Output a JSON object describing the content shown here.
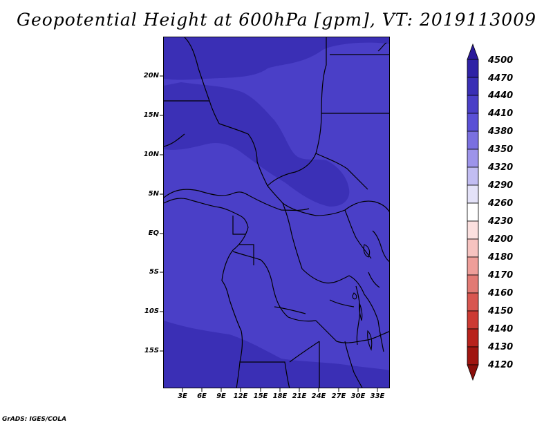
{
  "title": "Geopotential Height at 600hPa [gpm], VT: 2019113009",
  "footer": "GrADS: IGES/COLA",
  "lat_axis": {
    "labels": [
      "20N",
      "15N",
      "10N",
      "5N",
      "EQ",
      "5S",
      "10S",
      "15S"
    ],
    "values": [
      20,
      15,
      10,
      5,
      0,
      -5,
      -10,
      -15
    ],
    "range": [
      -20,
      25
    ]
  },
  "lon_axis": {
    "labels": [
      "3E",
      "6E",
      "9E",
      "12E",
      "15E",
      "18E",
      "21E",
      "24E",
      "27E",
      "30E",
      "33E"
    ],
    "values": [
      3,
      6,
      9,
      12,
      15,
      18,
      21,
      24,
      27,
      30,
      33
    ],
    "range": [
      0,
      35
    ]
  },
  "colorbar": {
    "labels": [
      "4500",
      "4470",
      "4440",
      "4410",
      "4380",
      "4350",
      "4320",
      "4290",
      "4260",
      "4230",
      "4200",
      "4180",
      "4170",
      "4160",
      "4150",
      "4140",
      "4130",
      "4120"
    ],
    "colors": [
      "#2a1a9a",
      "#2f22a6",
      "#3a2fb5",
      "#4a3fc7",
      "#5a50d6",
      "#7a70e0",
      "#9d94ea",
      "#c2bdf2",
      "#e4e2f8",
      "#ffffff",
      "#fbe0df",
      "#f6c3c0",
      "#ee9e99",
      "#e27a74",
      "#d85650",
      "#cc3a33",
      "#b8221c",
      "#a01510",
      "#8a0f0b"
    ],
    "extends": "both"
  },
  "field_levels": {
    "dominant": "#4a3fc7",
    "high_north": "#3a2fb5",
    "high_south": "#3a2fb5"
  }
}
